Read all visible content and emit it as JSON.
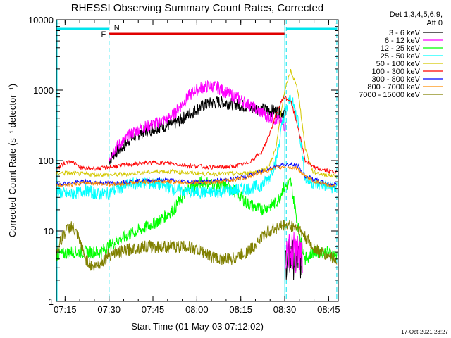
{
  "chart_data": {
    "type": "line",
    "title": "RHESSI Observing Summary Count Rates, Corrected",
    "xlabel": "Start Time (01-May-03 07:12:02)",
    "ylabel": "Corrected Count Rate (s⁻¹ detector⁻¹)",
    "yscale": "log",
    "ylim": [
      1,
      10000
    ],
    "xlim_minutes": [
      0,
      38.5
    ],
    "x_ticks": [
      "07:15",
      "07:30",
      "07:45",
      "08:00",
      "08:15",
      "08:30",
      "08:45"
    ],
    "y_ticks": [
      "1",
      "10",
      "100",
      "1000",
      "10000"
    ],
    "legend_header": [
      "Det 1,3,4,5,6,9,",
      "Att 0"
    ],
    "legend_position": "right",
    "grid": false,
    "footer_date": "17-Oct-2021 23:27",
    "markers": {
      "f_label": "F",
      "n_label": "N",
      "night_color": "#00e5ee",
      "flare_color": "#e00000",
      "night_intervals": [
        [
          -0.6,
          7.2
        ],
        [
          31.4,
          38.3
        ]
      ],
      "flare_interval": [
        7.2,
        31.2
      ],
      "dashed_lines_x": [
        7.2,
        31.4,
        38.3
      ],
      "solid_lines_x": [
        31.2
      ]
    },
    "series": [
      {
        "name": "3 - 6 keV",
        "color": "#000000",
        "style": "dense",
        "x": [
          7.2,
          8,
          9,
          10,
          11,
          12,
          13,
          14,
          15,
          16,
          17,
          18,
          19,
          20,
          21,
          22,
          23,
          24,
          25,
          26,
          27,
          28,
          29,
          30,
          31,
          31.3
        ],
        "y": [
          100,
          130,
          150,
          200,
          230,
          260,
          280,
          300,
          310,
          330,
          380,
          450,
          520,
          600,
          650,
          680,
          660,
          640,
          620,
          580,
          560,
          540,
          520,
          500,
          480,
          460
        ],
        "gap_after": [
          [
            31.3,
            33.6,
            4
          ]
        ]
      },
      {
        "name": "6 - 12 keV",
        "color": "#ff00ff",
        "style": "dense",
        "x": [
          7.2,
          8,
          9,
          10,
          11,
          12,
          13,
          14,
          15,
          16,
          17,
          18,
          19,
          20,
          21,
          22,
          23,
          24,
          25,
          26,
          27,
          28,
          29,
          30,
          31,
          31.3
        ],
        "y": [
          110,
          150,
          180,
          230,
          270,
          300,
          320,
          350,
          380,
          450,
          600,
          800,
          1000,
          1100,
          1150,
          1100,
          950,
          850,
          750,
          650,
          550,
          480,
          420,
          380,
          330,
          300
        ],
        "gap_after": [
          [
            31.3,
            33.6,
            5
          ]
        ]
      },
      {
        "name": "12 - 25 keV",
        "color": "#00ff00",
        "style": "dense",
        "x": [
          0,
          2,
          4,
          6,
          8,
          10,
          12,
          14,
          16,
          18,
          20,
          22,
          24,
          26,
          28,
          30,
          31,
          32,
          33,
          34,
          35,
          36,
          37,
          38.3
        ],
        "y": [
          4.5,
          5,
          5,
          5,
          7,
          9,
          11,
          14,
          20,
          40,
          50,
          45,
          40,
          25,
          20,
          25,
          40,
          50,
          12,
          4,
          5,
          5,
          5,
          4.5
        ]
      },
      {
        "name": "25 - 50 keV",
        "color": "#00ffff",
        "style": "dense",
        "x": [
          0,
          1,
          2,
          3,
          4,
          5,
          6,
          7,
          8,
          9,
          10,
          12,
          14,
          16,
          18,
          20,
          22,
          24,
          26,
          28,
          29,
          30,
          31,
          32,
          33,
          34,
          35,
          36,
          37,
          38.3
        ],
        "y": [
          37,
          34,
          33,
          35,
          38,
          35,
          33,
          34,
          38,
          42,
          46,
          48,
          46,
          40,
          36,
          35,
          36,
          38,
          40,
          44,
          55,
          100,
          400,
          800,
          380,
          55,
          48,
          45,
          44,
          40
        ]
      },
      {
        "name": "50 - 100 keV",
        "color": "#d4c800",
        "style": "line",
        "x": [
          0,
          2,
          4,
          6,
          8,
          10,
          12,
          14,
          16,
          18,
          20,
          22,
          24,
          26,
          28,
          29,
          30,
          31,
          32,
          33,
          34,
          35,
          36,
          37,
          38.3
        ],
        "y": [
          67,
          66,
          64,
          63,
          63,
          65,
          68,
          70,
          70,
          67,
          65,
          65,
          65,
          66,
          72,
          82,
          150,
          800,
          1900,
          1000,
          150,
          70,
          65,
          62,
          60
        ]
      },
      {
        "name": "100 - 300 keV",
        "color": "#ff0000",
        "style": "line",
        "x": [
          0,
          1,
          2,
          3,
          4,
          5,
          6,
          7,
          8,
          10,
          12,
          14,
          16,
          18,
          20,
          22,
          24,
          26,
          28,
          29,
          30,
          31,
          32,
          33,
          34,
          35,
          36,
          37,
          38.3
        ],
        "y": [
          75,
          90,
          100,
          82,
          76,
          78,
          77,
          80,
          82,
          88,
          92,
          94,
          90,
          85,
          82,
          80,
          82,
          90,
          130,
          220,
          450,
          800,
          700,
          300,
          100,
          80,
          75,
          72,
          68
        ]
      },
      {
        "name": "300 - 800 keV",
        "color": "#0000ff",
        "style": "line",
        "x": [
          0,
          2,
          4,
          6,
          8,
          10,
          12,
          14,
          16,
          18,
          20,
          22,
          24,
          26,
          28,
          30,
          31,
          32,
          33,
          34,
          35,
          36,
          37,
          38.3
        ],
        "y": [
          46,
          48,
          50,
          48,
          48,
          50,
          52,
          53,
          52,
          50,
          50,
          52,
          54,
          60,
          70,
          84,
          88,
          87,
          83,
          60,
          55,
          50,
          47,
          45
        ]
      },
      {
        "name": "800 - 7000 keV",
        "color": "#ff8c00",
        "style": "line",
        "x": [
          0,
          2,
          4,
          6,
          8,
          10,
          12,
          14,
          16,
          18,
          20,
          22,
          24,
          26,
          28,
          30,
          31,
          32,
          33,
          34,
          35,
          36,
          37,
          38.3
        ],
        "y": [
          44,
          46,
          48,
          47,
          46,
          48,
          50,
          51,
          50,
          49,
          48,
          50,
          53,
          58,
          68,
          78,
          82,
          80,
          76,
          58,
          52,
          48,
          45,
          43
        ]
      },
      {
        "name": "7000 - 15000 keV",
        "color": "#808000",
        "style": "dense",
        "x": [
          0,
          1,
          2,
          3,
          4,
          5,
          6,
          7,
          8,
          9,
          10,
          12,
          14,
          16,
          18,
          20,
          22,
          24,
          25,
          26,
          27,
          28,
          29,
          30,
          31,
          32,
          33,
          34,
          35,
          36,
          37,
          38.3
        ],
        "y": [
          5,
          9,
          12,
          8,
          4,
          3,
          3.5,
          4.5,
          5,
          5,
          5.5,
          6,
          6,
          6,
          6,
          5,
          4,
          4,
          4.5,
          5,
          6,
          8,
          10,
          11,
          12,
          12,
          11,
          8,
          6,
          5,
          4.5,
          4
        ]
      }
    ]
  }
}
